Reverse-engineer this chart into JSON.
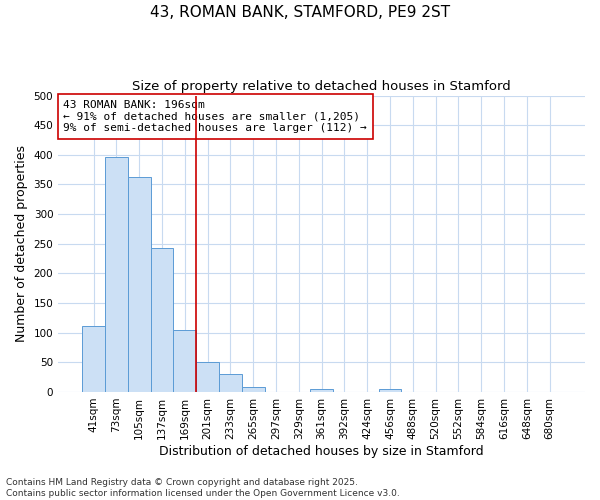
{
  "title": "43, ROMAN BANK, STAMFORD, PE9 2ST",
  "subtitle": "Size of property relative to detached houses in Stamford",
  "xlabel": "Distribution of detached houses by size in Stamford",
  "ylabel": "Number of detached properties",
  "categories": [
    "41sqm",
    "73sqm",
    "105sqm",
    "137sqm",
    "169sqm",
    "201sqm",
    "233sqm",
    "265sqm",
    "297sqm",
    "329sqm",
    "361sqm",
    "392sqm",
    "424sqm",
    "456sqm",
    "488sqm",
    "520sqm",
    "552sqm",
    "584sqm",
    "616sqm",
    "648sqm",
    "680sqm"
  ],
  "values": [
    112,
    397,
    362,
    242,
    105,
    50,
    30,
    8,
    0,
    0,
    5,
    0,
    0,
    5,
    0,
    0,
    0,
    0,
    0,
    0,
    0
  ],
  "bar_color": "#cce0f5",
  "bar_edge_color": "#5b9bd5",
  "vline_color": "#cc0000",
  "annotation_text": "43 ROMAN BANK: 196sqm\n← 91% of detached houses are smaller (1,205)\n9% of semi-detached houses are larger (112) →",
  "annotation_box_color": "#cc0000",
  "ylim": [
    0,
    500
  ],
  "yticks": [
    0,
    50,
    100,
    150,
    200,
    250,
    300,
    350,
    400,
    450,
    500
  ],
  "background_color": "#ffffff",
  "grid_color": "#c8daf0",
  "footer_text": "Contains HM Land Registry data © Crown copyright and database right 2025.\nContains public sector information licensed under the Open Government Licence v3.0.",
  "title_fontsize": 11,
  "subtitle_fontsize": 9.5,
  "axis_label_fontsize": 9,
  "tick_fontsize": 7.5,
  "annotation_fontsize": 8,
  "footer_fontsize": 6.5,
  "vline_index": 5
}
